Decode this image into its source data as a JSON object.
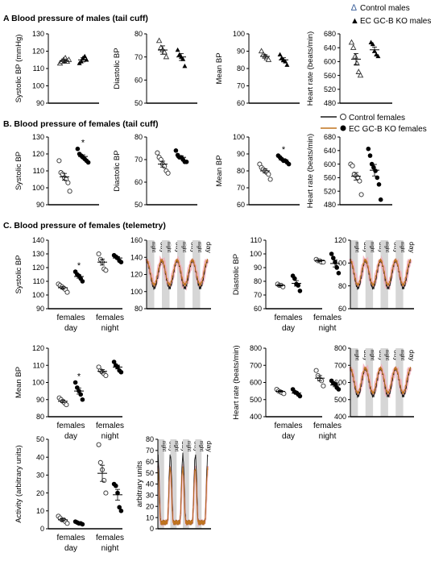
{
  "sections": {
    "a": "A Blood pressure of males (tail cuff)",
    "b": "B. Blood pressure of females (tail cuff)",
    "c": "C. Blood pressure of females (telemetry)"
  },
  "legend_a": {
    "control": "Control males",
    "ko": "EC GC-B KO males"
  },
  "legend_b": {
    "control": "Control females",
    "ko": "EC GC-B KO females"
  },
  "trace_labels": {
    "night": "night",
    "day": "day"
  },
  "colors": {
    "control": "#1a1a1a",
    "ko": "#c0741f",
    "ribbon": "#f2a9b8",
    "shade": "#d6d6d6",
    "star": "#000000"
  },
  "chart_data": [
    {
      "id": "a1",
      "type": "scatter",
      "ylabel": "Systolic BP (mmHg)",
      "ylim": [
        90,
        130
      ],
      "yticks": [
        90,
        100,
        110,
        120,
        130
      ],
      "groups": [
        {
          "marker": "open-triangle",
          "values": [
            113,
            114,
            115,
            116,
            114,
            115
          ],
          "mean": 114.5,
          "sem": 1.0
        },
        {
          "marker": "filled-triangle",
          "values": [
            113,
            114,
            116,
            117,
            115
          ],
          "mean": 115,
          "sem": 1.2
        }
      ]
    },
    {
      "id": "a2",
      "type": "scatter",
      "ylabel": "Diastolic BP",
      "ylim": [
        50,
        80
      ],
      "yticks": [
        50,
        60,
        70,
        80
      ],
      "groups": [
        {
          "marker": "open-triangle",
          "values": [
            77,
            74,
            73,
            72,
            70
          ],
          "mean": 73,
          "sem": 1.8
        },
        {
          "marker": "filled-triangle",
          "values": [
            73,
            71,
            70,
            69,
            66
          ],
          "mean": 70,
          "sem": 1.5
        }
      ]
    },
    {
      "id": "a3",
      "type": "scatter",
      "ylabel": "Mean BP",
      "ylim": [
        60,
        100
      ],
      "yticks": [
        60,
        70,
        80,
        90,
        100
      ],
      "groups": [
        {
          "marker": "open-triangle",
          "values": [
            90,
            88,
            87,
            86,
            85
          ],
          "mean": 87,
          "sem": 1.0
        },
        {
          "marker": "filled-triangle",
          "values": [
            88,
            86,
            85,
            84,
            82
          ],
          "mean": 85,
          "sem": 1.2
        }
      ]
    },
    {
      "id": "a4",
      "type": "scatter",
      "ylabel": "Heart rate (beats/min)",
      "ylim": [
        480,
        680
      ],
      "yticks": [
        480,
        520,
        560,
        600,
        640,
        680
      ],
      "groups": [
        {
          "marker": "open-triangle",
          "values": [
            655,
            640,
            615,
            595,
            570,
            560
          ],
          "mean": 607,
          "sem": 16
        },
        {
          "marker": "filled-triangle",
          "values": [
            655,
            650,
            630,
            620,
            615
          ],
          "mean": 634,
          "sem": 8
        }
      ]
    },
    {
      "id": "b1",
      "type": "scatter",
      "ylabel": "Systolic BP",
      "ylim": [
        90,
        130
      ],
      "yticks": [
        90,
        100,
        110,
        120,
        130
      ],
      "star": true,
      "groups": [
        {
          "marker": "open-circle",
          "values": [
            116,
            109,
            108,
            106,
            105,
            103,
            98
          ],
          "mean": 106.5,
          "sem": 2.0
        },
        {
          "marker": "filled-circle",
          "values": [
            123,
            120,
            119,
            118,
            117,
            116,
            115
          ],
          "mean": 118.5,
          "sem": 1.0
        }
      ]
    },
    {
      "id": "b2",
      "type": "scatter",
      "ylabel": "Diastolic BP",
      "ylim": [
        50,
        80
      ],
      "yticks": [
        50,
        60,
        70,
        80
      ],
      "groups": [
        {
          "marker": "open-circle",
          "values": [
            73,
            71,
            70,
            68,
            67,
            65,
            64
          ],
          "mean": 68,
          "sem": 1.3
        },
        {
          "marker": "filled-circle",
          "values": [
            74,
            72,
            71,
            71,
            70,
            69,
            69
          ],
          "mean": 71,
          "sem": 0.7
        }
      ]
    },
    {
      "id": "b3",
      "type": "scatter",
      "ylabel": "Mean BP",
      "ylim": [
        60,
        100
      ],
      "yticks": [
        60,
        70,
        80,
        90,
        100
      ],
      "star": true,
      "groups": [
        {
          "marker": "open-circle",
          "values": [
            84,
            82,
            81,
            80,
            79,
            78,
            75
          ],
          "mean": 80,
          "sem": 1.2
        },
        {
          "marker": "filled-circle",
          "values": [
            89,
            88,
            87,
            86,
            86,
            85,
            84
          ],
          "mean": 86.5,
          "sem": 0.7
        }
      ]
    },
    {
      "id": "b4",
      "type": "scatter",
      "ylabel": "Heart rate (beats/min)",
      "ylim": [
        480,
        680
      ],
      "yticks": [
        480,
        520,
        560,
        600,
        640,
        680
      ],
      "groups": [
        {
          "marker": "open-circle",
          "values": [
            600,
            595,
            570,
            565,
            560,
            550,
            510
          ],
          "mean": 564,
          "sem": 11
        },
        {
          "marker": "filled-circle",
          "values": [
            645,
            625,
            600,
            590,
            580,
            560,
            540,
            495
          ],
          "mean": 582,
          "sem": 17
        }
      ]
    },
    {
      "id": "c1",
      "type": "scatter",
      "ylabel": "Systolic BP",
      "ylim": [
        90,
        140
      ],
      "yticks": [
        90,
        100,
        110,
        120,
        130,
        140
      ],
      "categories": [
        "females day",
        "females night"
      ],
      "star_group": 0,
      "groups": [
        {
          "cat": 0,
          "marker": "open-circle",
          "values": [
            108,
            107,
            106,
            105,
            104,
            102
          ],
          "mean": 105.3,
          "sem": 1.0
        },
        {
          "cat": 0,
          "marker": "filled-circle",
          "values": [
            117,
            115,
            114,
            112,
            110
          ],
          "mean": 113.5,
          "sem": 1.2
        },
        {
          "cat": 1,
          "marker": "open-circle",
          "values": [
            130,
            126,
            124,
            119,
            118
          ],
          "mean": 124,
          "sem": 2.2
        },
        {
          "cat": 1,
          "marker": "filled-circle",
          "values": [
            129,
            128,
            127,
            125,
            124
          ],
          "mean": 127,
          "sem": 1.0
        }
      ]
    },
    {
      "id": "c1t",
      "type": "line",
      "ylim": [
        80,
        160
      ],
      "yticks": [
        80,
        100,
        120,
        140,
        160
      ],
      "ylabel": ""
    },
    {
      "id": "c2",
      "type": "scatter",
      "ylabel": "Diastolic BP",
      "ylim": [
        60,
        110
      ],
      "yticks": [
        60,
        70,
        80,
        90,
        100,
        110
      ],
      "categories": [
        "females day",
        "females night"
      ],
      "groups": [
        {
          "cat": 0,
          "marker": "open-circle",
          "values": [
            78,
            77,
            77,
            76
          ],
          "mean": 77,
          "sem": 0.5
        },
        {
          "cat": 0,
          "marker": "filled-circle",
          "values": [
            84,
            82,
            78,
            77,
            73
          ],
          "mean": 78.5,
          "sem": 2.0
        },
        {
          "cat": 1,
          "marker": "open-circle",
          "values": [
            96,
            95,
            95,
            94,
            94
          ],
          "mean": 95,
          "sem": 0.5
        },
        {
          "cat": 1,
          "marker": "filled-circle",
          "values": [
            100,
            97,
            94,
            90,
            86
          ],
          "mean": 93,
          "sem": 2.5
        }
      ]
    },
    {
      "id": "c2t",
      "type": "line",
      "ylim": [
        60,
        120
      ],
      "yticks": [
        60,
        80,
        100,
        120
      ],
      "ylabel": ""
    },
    {
      "id": "c3",
      "type": "scatter",
      "ylabel": "Mean BP",
      "ylim": [
        80,
        120
      ],
      "yticks": [
        80,
        90,
        100,
        110,
        120
      ],
      "categories": [
        "females day",
        "females night"
      ],
      "star_group": 0,
      "groups": [
        {
          "cat": 0,
          "marker": "open-circle",
          "values": [
            91,
            90,
            89,
            88,
            87
          ],
          "mean": 89,
          "sem": 0.8
        },
        {
          "cat": 0,
          "marker": "filled-circle",
          "values": [
            100,
            97,
            95,
            93,
            90
          ],
          "mean": 95,
          "sem": 1.8
        },
        {
          "cat": 1,
          "marker": "open-circle",
          "values": [
            109,
            107,
            106,
            105,
            104
          ],
          "mean": 106.5,
          "sem": 1.0
        },
        {
          "cat": 1,
          "marker": "filled-circle",
          "values": [
            112,
            110,
            109,
            107,
            106
          ],
          "mean": 109,
          "sem": 1.1
        }
      ]
    },
    {
      "id": "c4",
      "type": "scatter",
      "ylabel": "Heart rate (beats/min)",
      "ylim": [
        400,
        800
      ],
      "yticks": [
        400,
        500,
        600,
        700,
        800
      ],
      "categories": [
        "females day",
        "females night"
      ],
      "groups": [
        {
          "cat": 0,
          "marker": "open-circle",
          "values": [
            560,
            550,
            545,
            540,
            535
          ],
          "mean": 548,
          "sem": 5
        },
        {
          "cat": 0,
          "marker": "filled-circle",
          "values": [
            560,
            545,
            540,
            530,
            520
          ],
          "mean": 538,
          "sem": 7
        },
        {
          "cat": 1,
          "marker": "open-circle",
          "values": [
            670,
            640,
            620,
            610,
            580
          ],
          "mean": 625,
          "sem": 15
        },
        {
          "cat": 1,
          "marker": "filled-circle",
          "values": [
            610,
            595,
            590,
            570,
            560
          ],
          "mean": 585,
          "sem": 10
        }
      ]
    },
    {
      "id": "c4t",
      "type": "line",
      "ylim": [
        400,
        800
      ],
      "yticks": [
        400,
        500,
        600,
        700,
        800
      ],
      "ylabel": ""
    },
    {
      "id": "c5",
      "type": "scatter",
      "ylabel": "Activity (arbitrary units)",
      "ylim": [
        0,
        50
      ],
      "yticks": [
        0,
        10,
        20,
        30,
        40,
        50
      ],
      "categories": [
        "females day",
        "females night"
      ],
      "groups": [
        {
          "cat": 0,
          "marker": "open-circle",
          "values": [
            7,
            6,
            5,
            5,
            4,
            3
          ],
          "mean": 5,
          "sem": 0.6
        },
        {
          "cat": 0,
          "marker": "filled-circle",
          "values": [
            4,
            3.5,
            3,
            3,
            2.5
          ],
          "mean": 3.2,
          "sem": 0.3
        },
        {
          "cat": 1,
          "marker": "open-circle",
          "values": [
            47,
            37,
            33,
            27,
            20
          ],
          "mean": 31,
          "sem": 4.5
        },
        {
          "cat": 1,
          "marker": "filled-circle",
          "values": [
            25,
            24,
            20,
            12,
            10
          ],
          "mean": 19,
          "sem": 3
        }
      ]
    },
    {
      "id": "c5t",
      "type": "line",
      "ylim": [
        0,
        80
      ],
      "yticks": [
        0,
        10,
        20,
        30,
        40,
        50,
        60,
        70,
        80
      ],
      "ylabel": "arbitrary units"
    }
  ]
}
